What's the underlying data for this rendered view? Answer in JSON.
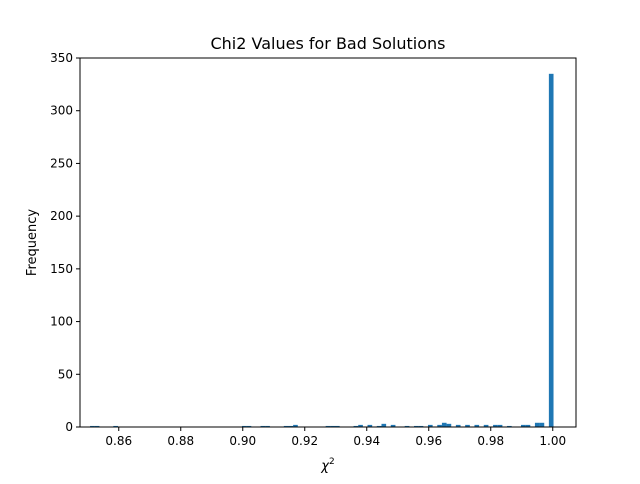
{
  "chart_data": {
    "type": "bar",
    "title": "Chi2 Values for Bad Solutions",
    "xlabel": "χ",
    "xlabel_superscript": "2",
    "ylabel": "Frequency",
    "xlim": [
      0.8475,
      1.0075
    ],
    "ylim": [
      0,
      350
    ],
    "bin_width": 0.0015,
    "xticks": [
      0.86,
      0.88,
      0.9,
      0.92,
      0.94,
      0.96,
      0.98,
      1.0
    ],
    "xtick_labels": [
      "0.86",
      "0.88",
      "0.90",
      "0.92",
      "0.94",
      "0.96",
      "0.98",
      "1.00"
    ],
    "yticks": [
      0,
      50,
      100,
      150,
      200,
      250,
      300,
      350
    ],
    "ytick_labels": [
      "0",
      "50",
      "100",
      "150",
      "200",
      "250",
      "300",
      "350"
    ],
    "bar_color": "#1f77b4",
    "grid": false,
    "bins": [
      {
        "x": 0.8515,
        "value": 1
      },
      {
        "x": 0.853,
        "value": 1
      },
      {
        "x": 0.859,
        "value": 1
      },
      {
        "x": 0.9005,
        "value": 1
      },
      {
        "x": 0.902,
        "value": 1
      },
      {
        "x": 0.9065,
        "value": 1
      },
      {
        "x": 0.908,
        "value": 1
      },
      {
        "x": 0.914,
        "value": 1
      },
      {
        "x": 0.9155,
        "value": 1
      },
      {
        "x": 0.917,
        "value": 2
      },
      {
        "x": 0.9275,
        "value": 1
      },
      {
        "x": 0.929,
        "value": 1
      },
      {
        "x": 0.9305,
        "value": 1
      },
      {
        "x": 0.9365,
        "value": 1
      },
      {
        "x": 0.938,
        "value": 2
      },
      {
        "x": 0.941,
        "value": 2
      },
      {
        "x": 0.944,
        "value": 1
      },
      {
        "x": 0.9455,
        "value": 3
      },
      {
        "x": 0.9485,
        "value": 2
      },
      {
        "x": 0.953,
        "value": 1
      },
      {
        "x": 0.956,
        "value": 1
      },
      {
        "x": 0.9575,
        "value": 1
      },
      {
        "x": 0.9605,
        "value": 2
      },
      {
        "x": 0.9635,
        "value": 2
      },
      {
        "x": 0.965,
        "value": 4
      },
      {
        "x": 0.9665,
        "value": 3
      },
      {
        "x": 0.9695,
        "value": 2
      },
      {
        "x": 0.9725,
        "value": 2
      },
      {
        "x": 0.9755,
        "value": 2
      },
      {
        "x": 0.9785,
        "value": 2
      },
      {
        "x": 0.9815,
        "value": 2
      },
      {
        "x": 0.983,
        "value": 2
      },
      {
        "x": 0.986,
        "value": 1
      },
      {
        "x": 0.9905,
        "value": 2
      },
      {
        "x": 0.992,
        "value": 2
      },
      {
        "x": 0.995,
        "value": 4
      },
      {
        "x": 0.9965,
        "value": 4
      },
      {
        "x": 0.9995,
        "value": 335
      }
    ]
  }
}
